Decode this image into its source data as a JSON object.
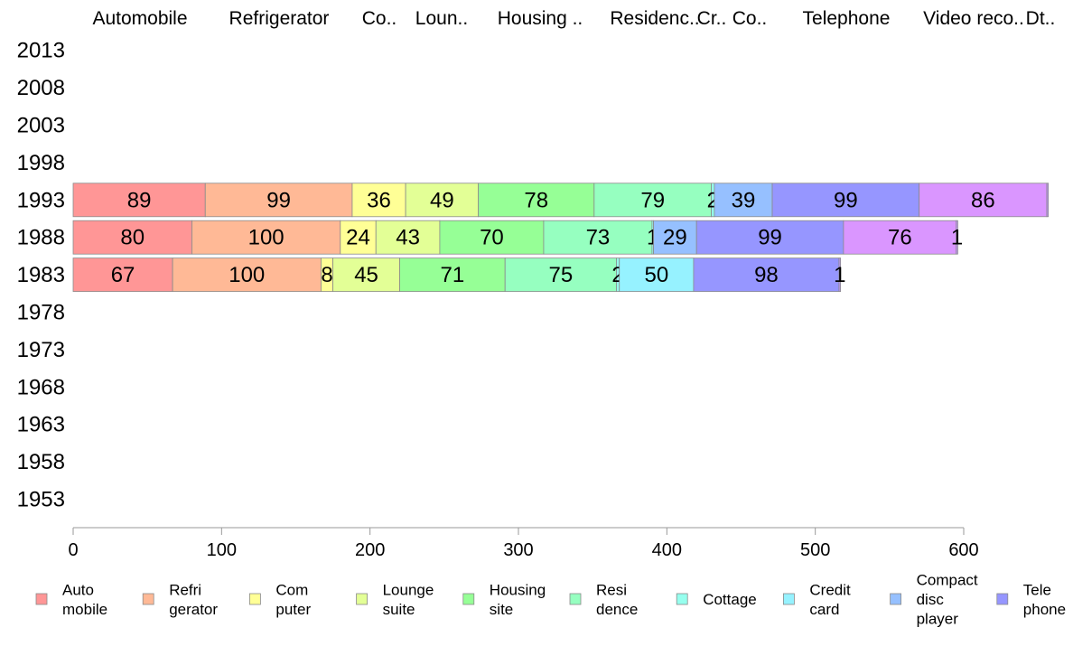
{
  "chart_data": {
    "type": "bar",
    "orientation": "horizontal",
    "stacked": true,
    "title": "",
    "xlabel": "",
    "ylabel": "",
    "xlim": [
      0,
      600
    ],
    "x_ticks": [
      "0",
      "100",
      "200",
      "300",
      "400",
      "500",
      "600"
    ],
    "categories": [
      "2013",
      "2008",
      "2003",
      "1998",
      "1993",
      "1988",
      "1983",
      "1978",
      "1973",
      "1968",
      "1963",
      "1958",
      "1953"
    ],
    "column_headers": [
      "Automobile",
      "Refrigerator",
      "Co..",
      "Loun..",
      "Housing ..",
      "Residenc..",
      "Cr..",
      "Co..",
      "Telephone",
      "Video reco..",
      "Dt.."
    ],
    "series": [
      {
        "key": "automobile",
        "legend": "Auto\nmobile",
        "color": "#ff9696",
        "values": {
          "1993": 89,
          "1988": 80,
          "1983": 67
        }
      },
      {
        "key": "refrigerator",
        "legend": "Refri\ngerator",
        "color": "#ffb996",
        "values": {
          "1993": 99,
          "1988": 100,
          "1983": 100
        }
      },
      {
        "key": "computer",
        "legend": "Com\nputer",
        "color": "#ffff96",
        "values": {
          "1993": 36,
          "1988": 24,
          "1983": 8
        }
      },
      {
        "key": "lounge",
        "legend": "Lounge\nsuite",
        "color": "#e3ff96",
        "values": {
          "1993": 49,
          "1988": 43,
          "1983": 45
        }
      },
      {
        "key": "housing",
        "legend": "Housing\nsite",
        "color": "#96ff96",
        "values": {
          "1993": 78,
          "1988": 70,
          "1983": 71
        }
      },
      {
        "key": "residence",
        "legend": "Resi\ndence",
        "color": "#96ffc0",
        "values": {
          "1993": 79,
          "1988": 73,
          "1983": 75
        }
      },
      {
        "key": "cottage",
        "legend": "Cottage",
        "color": "#96ffee",
        "values": {
          "1993": 2,
          "1988": 1,
          "1983": 2
        }
      },
      {
        "key": "credit",
        "legend": "Credit\ncard",
        "color": "#96f2ff",
        "values": {
          "1993": 0,
          "1988": 0,
          "1983": 50
        }
      },
      {
        "key": "cd",
        "legend": "Compact\ndisc\nplayer",
        "color": "#96c0ff",
        "values": {
          "1993": 39,
          "1988": 29,
          "1983": 0
        }
      },
      {
        "key": "telephone",
        "legend": "Tele\nphone",
        "color": "#9696ff",
        "values": {
          "1993": 99,
          "1988": 99,
          "1983": 98
        }
      },
      {
        "key": "video",
        "legend": "",
        "color": "#da96ff",
        "values": {
          "1993": 86,
          "1988": 76,
          "1983": 0
        }
      },
      {
        "key": "dt",
        "legend": "",
        "color": "#c296ff",
        "values": {
          "1993": 1,
          "1988": 1,
          "1983": 1
        }
      }
    ],
    "data_labels": {
      "1993": {
        "automobile": "89",
        "refrigerator": "99",
        "computer": "36",
        "lounge": "49",
        "housing": "78",
        "residence": "79",
        "cottage": "2",
        "cd": "39",
        "telephone": "99",
        "video": "86"
      },
      "1988": {
        "automobile": "80",
        "refrigerator": "100",
        "computer": "24",
        "lounge": "43",
        "housing": "70",
        "residence": "73",
        "cottage": "1",
        "cd": "29",
        "telephone": "99",
        "video": "76",
        "dt": "1"
      },
      "1983": {
        "automobile": "67",
        "refrigerator": "100",
        "computer": "8",
        "lounge": "45",
        "housing": "71",
        "residence": "75",
        "cottage": "2",
        "credit": "50",
        "telephone": "98",
        "dt": "1"
      }
    },
    "legend_position": "bottom",
    "grid": false
  }
}
